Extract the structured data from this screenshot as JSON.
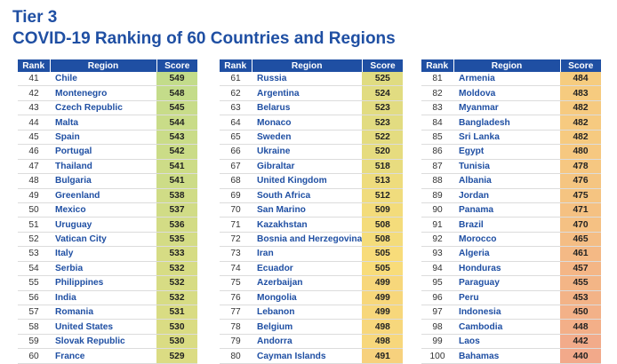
{
  "heading": {
    "line1": "Tier 3",
    "line2": "COVID-19 Ranking of 60 Countries and Regions"
  },
  "headers": {
    "rank": "Rank",
    "region": "Region",
    "score": "Score"
  },
  "columns": [
    [
      {
        "rank": "41",
        "region": "Chile",
        "score": "549"
      },
      {
        "rank": "42",
        "region": "Montenegro",
        "score": "548"
      },
      {
        "rank": "43",
        "region": "Czech Republic",
        "score": "545"
      },
      {
        "rank": "44",
        "region": "Malta",
        "score": "544"
      },
      {
        "rank": "45",
        "region": "Spain",
        "score": "543"
      },
      {
        "rank": "46",
        "region": "Portugal",
        "score": "542"
      },
      {
        "rank": "47",
        "region": "Thailand",
        "score": "541"
      },
      {
        "rank": "48",
        "region": "Bulgaria",
        "score": "541"
      },
      {
        "rank": "49",
        "region": "Greenland",
        "score": "538"
      },
      {
        "rank": "50",
        "region": "Mexico",
        "score": "537"
      },
      {
        "rank": "51",
        "region": "Uruguay",
        "score": "536"
      },
      {
        "rank": "52",
        "region": "Vatican City",
        "score": "535"
      },
      {
        "rank": "53",
        "region": "Italy",
        "score": "533"
      },
      {
        "rank": "54",
        "region": "Serbia",
        "score": "532"
      },
      {
        "rank": "55",
        "region": "Philippines",
        "score": "532"
      },
      {
        "rank": "56",
        "region": "India",
        "score": "532"
      },
      {
        "rank": "57",
        "region": "Romania",
        "score": "531"
      },
      {
        "rank": "58",
        "region": "United States",
        "score": "530"
      },
      {
        "rank": "59",
        "region": "Slovak Republic",
        "score": "530"
      },
      {
        "rank": "60",
        "region": "France",
        "score": "529"
      }
    ],
    [
      {
        "rank": "61",
        "region": "Russia",
        "score": "525"
      },
      {
        "rank": "62",
        "region": "Argentina",
        "score": "524"
      },
      {
        "rank": "63",
        "region": "Belarus",
        "score": "523"
      },
      {
        "rank": "64",
        "region": "Monaco",
        "score": "523"
      },
      {
        "rank": "65",
        "region": "Sweden",
        "score": "522"
      },
      {
        "rank": "66",
        "region": "Ukraine",
        "score": "520"
      },
      {
        "rank": "67",
        "region": "Gibraltar",
        "score": "518"
      },
      {
        "rank": "68",
        "region": "United Kingdom",
        "score": "513"
      },
      {
        "rank": "69",
        "region": "South Africa",
        "score": "512"
      },
      {
        "rank": "70",
        "region": "San Marino",
        "score": "509"
      },
      {
        "rank": "71",
        "region": "Kazakhstan",
        "score": "508"
      },
      {
        "rank": "72",
        "region": "Bosnia and Herzegovina",
        "score": "508"
      },
      {
        "rank": "73",
        "region": "Iran",
        "score": "505"
      },
      {
        "rank": "74",
        "region": "Ecuador",
        "score": "505"
      },
      {
        "rank": "75",
        "region": "Azerbaijan",
        "score": "499"
      },
      {
        "rank": "76",
        "region": "Mongolia",
        "score": "499"
      },
      {
        "rank": "77",
        "region": "Lebanon",
        "score": "499"
      },
      {
        "rank": "78",
        "region": "Belgium",
        "score": "498"
      },
      {
        "rank": "79",
        "region": "Andorra",
        "score": "498"
      },
      {
        "rank": "80",
        "region": "Cayman Islands",
        "score": "491"
      }
    ],
    [
      {
        "rank": "81",
        "region": "Armenia",
        "score": "484"
      },
      {
        "rank": "82",
        "region": "Moldova",
        "score": "483"
      },
      {
        "rank": "83",
        "region": "Myanmar",
        "score": "482"
      },
      {
        "rank": "84",
        "region": "Bangladesh",
        "score": "482"
      },
      {
        "rank": "85",
        "region": "Sri Lanka",
        "score": "482"
      },
      {
        "rank": "86",
        "region": "Egypt",
        "score": "480"
      },
      {
        "rank": "87",
        "region": "Tunisia",
        "score": "478"
      },
      {
        "rank": "88",
        "region": "Albania",
        "score": "476"
      },
      {
        "rank": "89",
        "region": "Jordan",
        "score": "475"
      },
      {
        "rank": "90",
        "region": "Panama",
        "score": "471"
      },
      {
        "rank": "91",
        "region": "Brazil",
        "score": "470"
      },
      {
        "rank": "92",
        "region": "Morocco",
        "score": "465"
      },
      {
        "rank": "93",
        "region": "Algeria",
        "score": "461"
      },
      {
        "rank": "94",
        "region": "Honduras",
        "score": "457"
      },
      {
        "rank": "95",
        "region": "Paraguay",
        "score": "455"
      },
      {
        "rank": "96",
        "region": "Peru",
        "score": "453"
      },
      {
        "rank": "97",
        "region": "Indonesia",
        "score": "450"
      },
      {
        "rank": "98",
        "region": "Cambodia",
        "score": "448"
      },
      {
        "rank": "99",
        "region": "Laos",
        "score": "442"
      },
      {
        "rank": "100",
        "region": "Bahamas",
        "score": "440"
      }
    ]
  ],
  "colors": {
    "header": "#1f4fa3",
    "region_text": "#1f4fa3",
    "score_high": "#c3dc8a",
    "score_mid": "#f8dc7a",
    "score_low": "#f2a98a"
  }
}
